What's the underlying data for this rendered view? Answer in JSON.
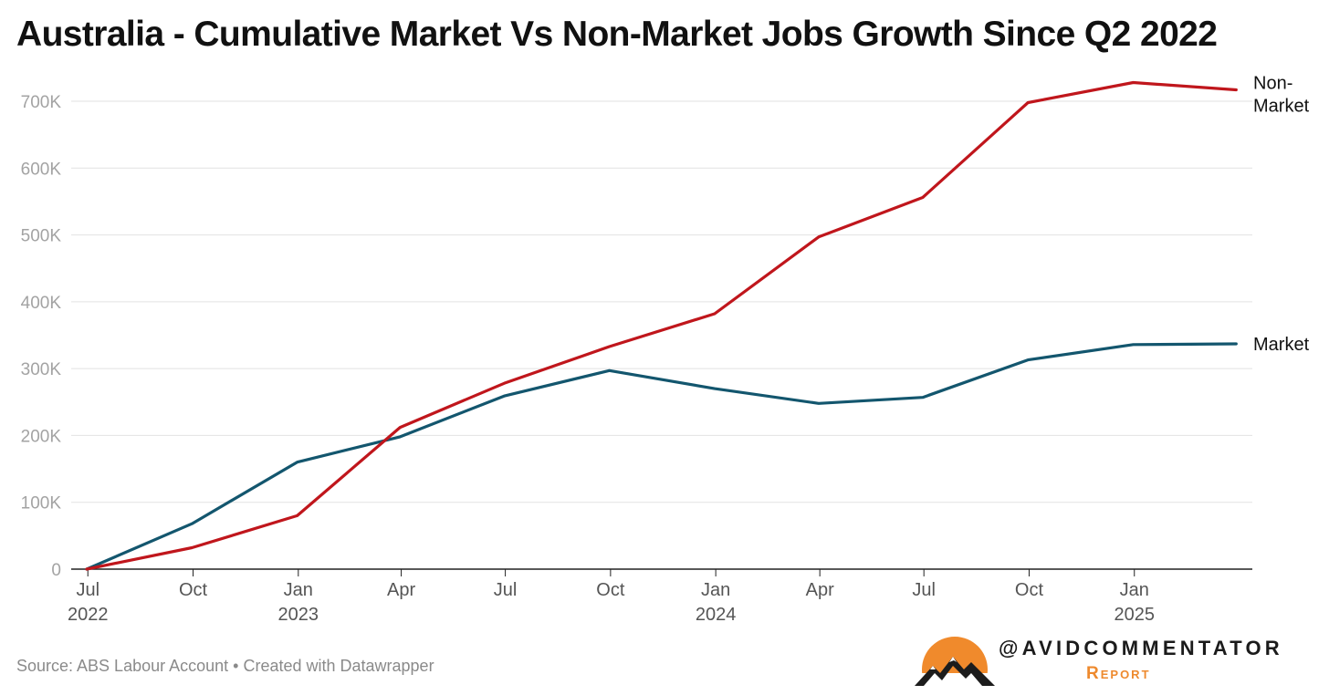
{
  "title": "Australia - Cumulative Market Vs Non-Market Jobs Growth Since Q2 2022",
  "source": "Source: ABS Labour Account • Created with Datawrapper",
  "brand": {
    "handle": "@AVIDCOMMENTATOR",
    "subtitle": "Report",
    "logo_icon": "sun-mountains-icon",
    "logo_colors": {
      "sun": "#f08a2c",
      "mountains": "#1c1c1c"
    }
  },
  "colors": {
    "non_market": "#c0161c",
    "market": "#13566e",
    "grid": "#e2e2e2",
    "axis": "#222222"
  },
  "chart_data": {
    "type": "line",
    "title": "Australia - Cumulative Market Vs Non-Market Jobs Growth Since Q2 2022",
    "xlabel": "",
    "ylabel": "",
    "x": [
      "2022-06",
      "2022-09",
      "2022-12",
      "2023-03",
      "2023-06",
      "2023-09",
      "2023-12",
      "2024-03",
      "2024-06",
      "2024-09",
      "2024-12",
      "2025-03"
    ],
    "series": [
      {
        "name": "Non-Market",
        "label_lines": [
          "Non-",
          "Market"
        ],
        "color": "#c0161c",
        "values": [
          0,
          32000,
          80000,
          212000,
          278000,
          333000,
          382000,
          497000,
          556000,
          698000,
          728000,
          717000
        ]
      },
      {
        "name": "Market",
        "label_lines": [
          "Market"
        ],
        "color": "#13566e",
        "values": [
          0,
          68000,
          160000,
          198000,
          259000,
          297000,
          270000,
          248000,
          257000,
          313000,
          336000,
          337000
        ]
      }
    ],
    "ylim": [
      0,
      700000
    ],
    "yticks": [
      {
        "value": 0,
        "label": "0"
      },
      {
        "value": 100000,
        "label": "100K"
      },
      {
        "value": 200000,
        "label": "200K"
      },
      {
        "value": 300000,
        "label": "300K"
      },
      {
        "value": 400000,
        "label": "400K"
      },
      {
        "value": 500000,
        "label": "500K"
      },
      {
        "value": 600000,
        "label": "600K"
      },
      {
        "value": 700000,
        "label": "700K"
      }
    ],
    "xticks": [
      {
        "date": "2022-07",
        "label": "Jul",
        "year": "2022"
      },
      {
        "date": "2022-10",
        "label": "Oct",
        "year": ""
      },
      {
        "date": "2023-01",
        "label": "Jan",
        "year": "2023"
      },
      {
        "date": "2023-04",
        "label": "Apr",
        "year": ""
      },
      {
        "date": "2023-07",
        "label": "Jul",
        "year": ""
      },
      {
        "date": "2023-10",
        "label": "Oct",
        "year": ""
      },
      {
        "date": "2024-01",
        "label": "Jan",
        "year": "2024"
      },
      {
        "date": "2024-04",
        "label": "Apr",
        "year": ""
      },
      {
        "date": "2024-07",
        "label": "Jul",
        "year": ""
      },
      {
        "date": "2024-10",
        "label": "Oct",
        "year": ""
      },
      {
        "date": "2025-01",
        "label": "Jan",
        "year": "2025"
      }
    ],
    "grid": true,
    "legend": "direct labels at line ends (right)"
  }
}
